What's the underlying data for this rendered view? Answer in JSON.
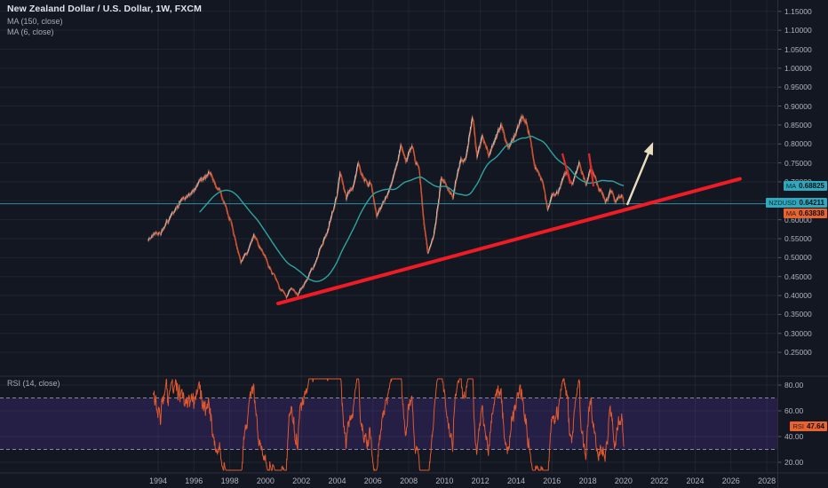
{
  "header": {
    "title": "New Zealand Dollar / U.S. Dollar, 1W, FXCM",
    "indicators": [
      "MA (150, close)",
      "MA (6, close)"
    ]
  },
  "rsi_pane": {
    "legend": "RSI (14, close)",
    "ticks": [
      "80.00",
      "60.00",
      "40.00",
      "20.00"
    ],
    "levels": [
      70,
      30
    ],
    "last_value": "47.64"
  },
  "price_axis": {
    "ticks": [
      "1.15000",
      "1.10000",
      "1.05000",
      "1.00000",
      "0.95000",
      "0.90000",
      "0.85000",
      "0.80000",
      "0.75000",
      "0.70000",
      "0.65000",
      "0.60000",
      "0.55000",
      "0.50000",
      "0.45000",
      "0.40000",
      "0.35000",
      "0.30000",
      "0.25000"
    ],
    "labels": {
      "ma150": {
        "prefix": "MA",
        "value": "0.68825",
        "color": "#2fa9bd"
      },
      "symbol": {
        "prefix": "NZDUSD",
        "value": "0.64211",
        "color": "#2fa9bd"
      },
      "ma6": {
        "prefix": "MA",
        "value": "0.63838",
        "color": "#e8632f"
      },
      "rsi": {
        "prefix": "RSI",
        "value": "47.64",
        "color": "#e8632f"
      }
    }
  },
  "time_axis": {
    "ticks": [
      "1994",
      "1996",
      "1998",
      "2000",
      "2002",
      "2004",
      "2006",
      "2008",
      "2010",
      "2012",
      "2014",
      "2016",
      "2018",
      "2020",
      "2022",
      "2024",
      "2026",
      "2028"
    ]
  },
  "chart_data": {
    "type": "candlestick",
    "title": "New Zealand Dollar / U.S. Dollar, 1W, FXCM",
    "x_unit": "year",
    "data_year_range": [
      1993.45,
      2020.0
    ],
    "visible_price_range": [
      0.19,
      1.18
    ],
    "price_grid_step": 0.05,
    "last_close": 0.64211,
    "ma_periods": [
      150,
      6
    ],
    "ma150_last": 0.68825,
    "ma6_last": 0.63838,
    "rsi": {
      "period": 14,
      "overbought": 70,
      "oversold": 30,
      "last": 47.64,
      "visible_range": [
        13,
        86
      ]
    },
    "price_path": [
      [
        1993.45,
        0.545
      ],
      [
        1993.9,
        0.565
      ],
      [
        1994.4,
        0.59
      ],
      [
        1994.9,
        0.62
      ],
      [
        1995.3,
        0.65
      ],
      [
        1995.8,
        0.662
      ],
      [
        1996.3,
        0.69
      ],
      [
        1996.9,
        0.715
      ],
      [
        1997.4,
        0.69
      ],
      [
        1997.8,
        0.625
      ],
      [
        1998.2,
        0.56
      ],
      [
        1998.6,
        0.493
      ],
      [
        1999.0,
        0.535
      ],
      [
        1999.35,
        0.572
      ],
      [
        1999.8,
        0.52
      ],
      [
        2000.3,
        0.465
      ],
      [
        2000.8,
        0.42
      ],
      [
        2001.15,
        0.395
      ],
      [
        2001.45,
        0.422
      ],
      [
        2001.8,
        0.405
      ],
      [
        2002.2,
        0.438
      ],
      [
        2002.6,
        0.475
      ],
      [
        2003.0,
        0.52
      ],
      [
        2003.5,
        0.578
      ],
      [
        2003.95,
        0.648
      ],
      [
        2004.15,
        0.702
      ],
      [
        2004.5,
        0.638
      ],
      [
        2004.9,
        0.685
      ],
      [
        2005.15,
        0.738
      ],
      [
        2005.5,
        0.7
      ],
      [
        2005.9,
        0.71
      ],
      [
        2006.2,
        0.612
      ],
      [
        2006.6,
        0.652
      ],
      [
        2007.0,
        0.688
      ],
      [
        2007.55,
        0.808
      ],
      [
        2007.85,
        0.755
      ],
      [
        2008.2,
        0.8
      ],
      [
        2008.55,
        0.735
      ],
      [
        2008.85,
        0.58
      ],
      [
        2009.05,
        0.502
      ],
      [
        2009.35,
        0.558
      ],
      [
        2009.8,
        0.715
      ],
      [
        2010.1,
        0.7
      ],
      [
        2010.45,
        0.668
      ],
      [
        2010.9,
        0.765
      ],
      [
        2011.2,
        0.775
      ],
      [
        2011.55,
        0.872
      ],
      [
        2011.8,
        0.768
      ],
      [
        2012.1,
        0.822
      ],
      [
        2012.45,
        0.778
      ],
      [
        2012.8,
        0.822
      ],
      [
        2013.2,
        0.852
      ],
      [
        2013.55,
        0.788
      ],
      [
        2013.9,
        0.825
      ],
      [
        2014.3,
        0.872
      ],
      [
        2014.7,
        0.838
      ],
      [
        2015.0,
        0.758
      ],
      [
        2015.4,
        0.722
      ],
      [
        2015.75,
        0.628
      ],
      [
        2016.1,
        0.66
      ],
      [
        2016.5,
        0.696
      ],
      [
        2016.85,
        0.732
      ],
      [
        2017.15,
        0.692
      ],
      [
        2017.5,
        0.748
      ],
      [
        2017.9,
        0.688
      ],
      [
        2018.2,
        0.736
      ],
      [
        2018.6,
        0.672
      ],
      [
        2018.95,
        0.648
      ],
      [
        2019.25,
        0.676
      ],
      [
        2019.55,
        0.652
      ],
      [
        2019.75,
        0.664
      ],
      [
        2020.0,
        0.64211
      ]
    ],
    "drawings": {
      "support_trendline": {
        "from": [
          2000.7,
          0.379
        ],
        "to": [
          2026.5,
          0.708
        ],
        "color": "#ef1c26",
        "width": 4
      },
      "projection_arrow": {
        "from": [
          2020.2,
          0.639
        ],
        "to": [
          2021.65,
          0.805
        ],
        "color": "#e8ddbd",
        "width": 2.4
      },
      "resistance_marks": [
        {
          "from": [
            2016.58,
            0.775
          ],
          "to": [
            2017.03,
            0.695
          ]
        },
        {
          "from": [
            2018.07,
            0.775
          ],
          "to": [
            2018.32,
            0.688
          ]
        }
      ],
      "marks_color": "#e02a2a"
    },
    "colors": {
      "background": "#131722",
      "grid": "rgba(255,255,255,0.06)",
      "divider": "#2a2e39",
      "tick_dash": "#565b66",
      "up_candle": "#cfd8de",
      "down_candle": "#dd5332",
      "ma150": "#2fa3a0",
      "ma6": "#e8632f",
      "rsi_line": "#e0592e",
      "rsi_band": "rgba(136,66,255,0.16)",
      "rsi_levels": "#b6b9c5",
      "last_price_line": "#2fa9bd",
      "axis_text": "#b0b4bf"
    }
  }
}
